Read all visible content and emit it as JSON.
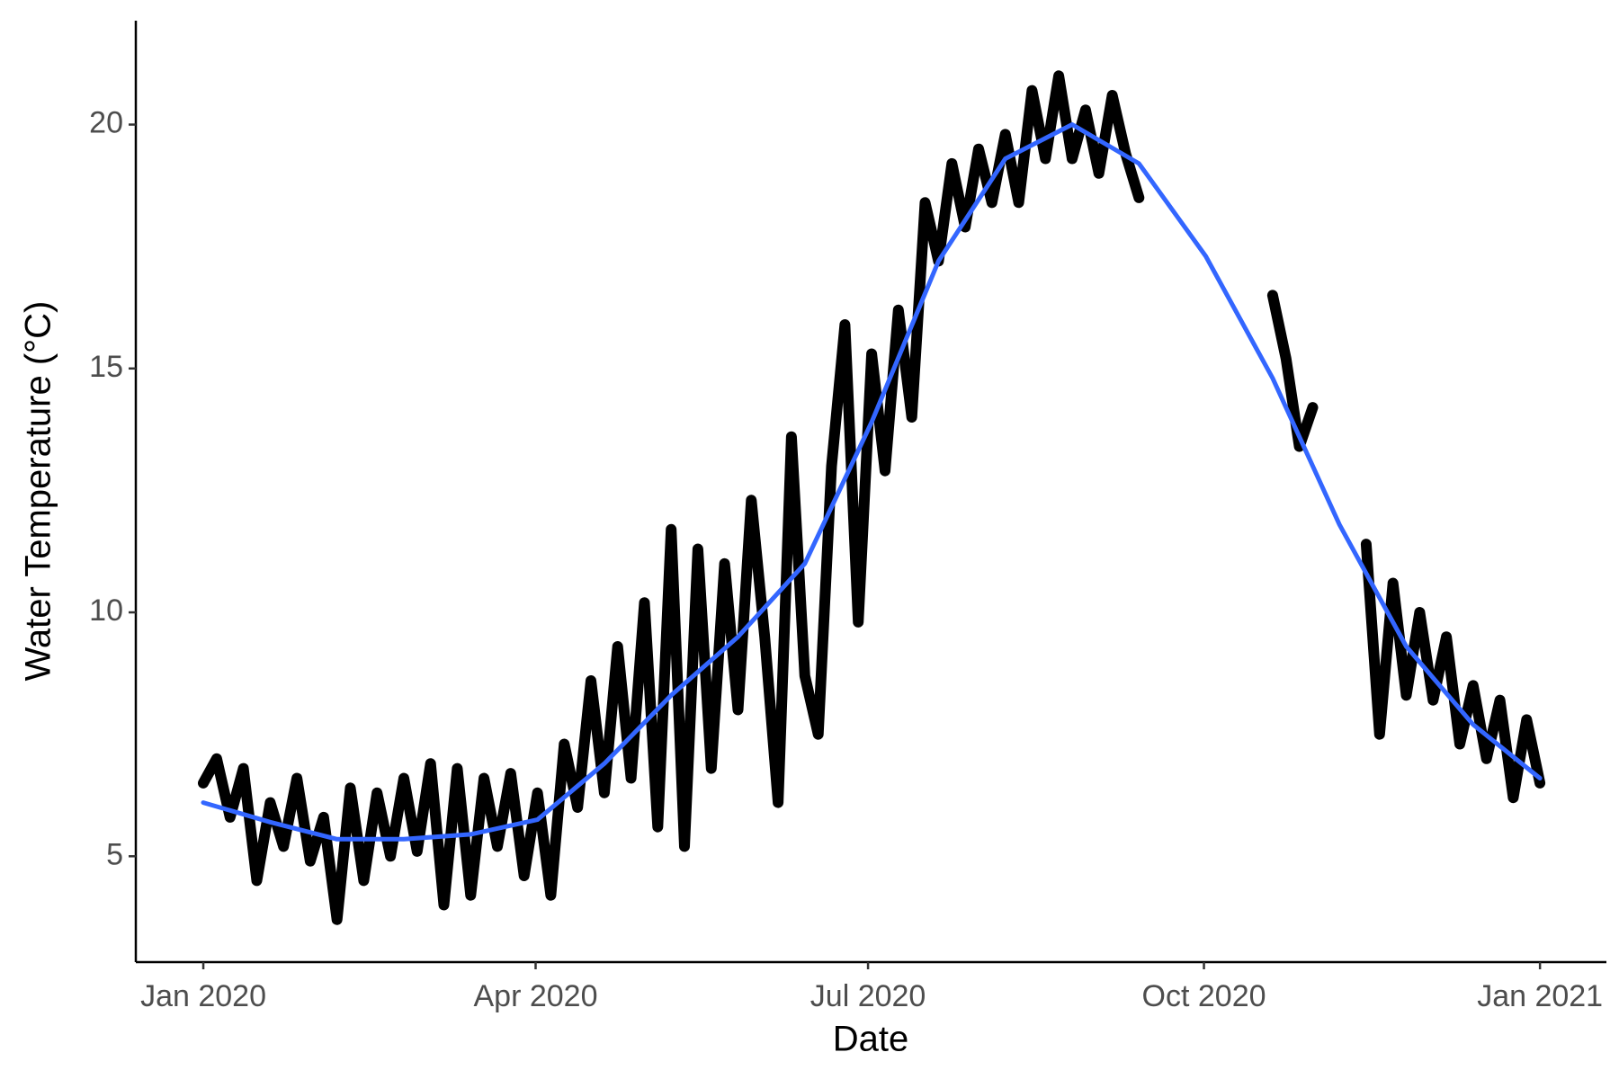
{
  "chart_data": {
    "type": "line",
    "x_label": "Date",
    "y_label": "Water Temperature (°C)",
    "xlim": [
      2019.9495,
      2021.0497
    ],
    "ylim": [
      2.83,
      22.13
    ],
    "xticks": [
      {
        "value": 2020,
        "label": "Jan 2020"
      },
      {
        "value": 2020.2486,
        "label": "Apr 2020"
      },
      {
        "value": 2020.4973,
        "label": "Jul 2020"
      },
      {
        "value": 2020.7486,
        "label": "Oct 2020"
      },
      {
        "value": 2021,
        "label": "Jan 2021"
      }
    ],
    "yticks": [
      5,
      10,
      15,
      20
    ],
    "grid": false,
    "series": [
      {
        "color": "#000000",
        "line_width": 12,
        "x": [
          2020,
          2020.01,
          2020.02,
          2020.03,
          2020.04,
          2020.05,
          2020.06,
          2020.07,
          2020.08,
          2020.09,
          2020.1,
          2020.11,
          2020.12,
          2020.13,
          2020.14,
          2020.15,
          2020.16,
          2020.17,
          2020.18,
          2020.19,
          2020.2,
          2020.21,
          2020.22,
          2020.23,
          2020.24,
          2020.25,
          2020.26,
          2020.27,
          2020.28,
          2020.29,
          2020.3,
          2020.31,
          2020.32,
          2020.33,
          2020.34,
          2020.35,
          2020.36,
          2020.37,
          2020.38,
          2020.39,
          2020.4,
          2020.41,
          2020.42,
          2020.43,
          2020.44,
          2020.45,
          2020.46,
          2020.47,
          2020.48,
          2020.49,
          2020.5,
          2020.51,
          2020.52,
          2020.53,
          2020.54,
          2020.55,
          2020.56,
          2020.57,
          2020.58,
          2020.59,
          2020.6,
          2020.61,
          2020.62,
          2020.63,
          2020.64,
          2020.65,
          2020.66,
          2020.67,
          2020.68,
          2020.69,
          2020.7,
          2020.71,
          2020.72,
          2020.73,
          2020.74,
          2020.75,
          2020.76,
          2020.77,
          2020.78,
          2020.79,
          2020.8,
          2020.81,
          2020.82,
          2020.83,
          2020.84,
          2020.85,
          2020.86,
          2020.87,
          2020.88,
          2020.89,
          2020.9,
          2020.91,
          2020.92,
          2020.93,
          2020.94,
          2020.95,
          2020.96,
          2020.97,
          2020.98,
          2020.99,
          2021
        ],
        "values": [
          6.5,
          7.0,
          5.8,
          6.8,
          4.5,
          6.1,
          5.2,
          6.6,
          4.9,
          5.8,
          3.7,
          6.4,
          4.5,
          6.3,
          5.0,
          6.6,
          5.1,
          6.9,
          4.0,
          6.8,
          4.2,
          6.6,
          5.2,
          6.7,
          4.6,
          6.3,
          4.2,
          7.3,
          6.0,
          8.6,
          6.3,
          9.3,
          6.6,
          10.2,
          5.6,
          11.7,
          5.2,
          11.3,
          6.8,
          11.0,
          8.0,
          12.3,
          9.5,
          6.1,
          13.6,
          8.7,
          7.5,
          13.0,
          15.9,
          9.8,
          15.3,
          12.9,
          16.2,
          14.0,
          18.4,
          17.2,
          19.2,
          17.9,
          19.5,
          18.4,
          19.8,
          18.4,
          20.7,
          19.3,
          21.0,
          19.3,
          20.3,
          19.0,
          20.6,
          19.4,
          18.5,
          null,
          null,
          null,
          null,
          null,
          null,
          null,
          null,
          null,
          16.5,
          15.2,
          13.4,
          14.2,
          null,
          null,
          null,
          11.4,
          7.5,
          10.6,
          8.3,
          10.0,
          8.2,
          9.5,
          7.3,
          8.5,
          7.0,
          8.2,
          6.2,
          7.8,
          6.5
        ]
      },
      {
        "color": "#3366ff",
        "line_width": 5,
        "x": [
          2020,
          2020.05,
          2020.1,
          2020.15,
          2020.2,
          2020.25,
          2020.3,
          2020.35,
          2020.4,
          2020.45,
          2020.5,
          2020.55,
          2020.6,
          2020.65,
          2020.7,
          2020.75,
          2020.8,
          2020.85,
          2020.9,
          2020.95,
          2021
        ],
        "values": [
          6.1,
          5.7,
          5.35,
          5.35,
          5.45,
          5.75,
          6.9,
          8.3,
          9.5,
          11.0,
          13.9,
          17.2,
          19.3,
          20.0,
          19.2,
          17.3,
          14.8,
          11.8,
          9.3,
          7.7,
          6.6
        ]
      }
    ]
  }
}
